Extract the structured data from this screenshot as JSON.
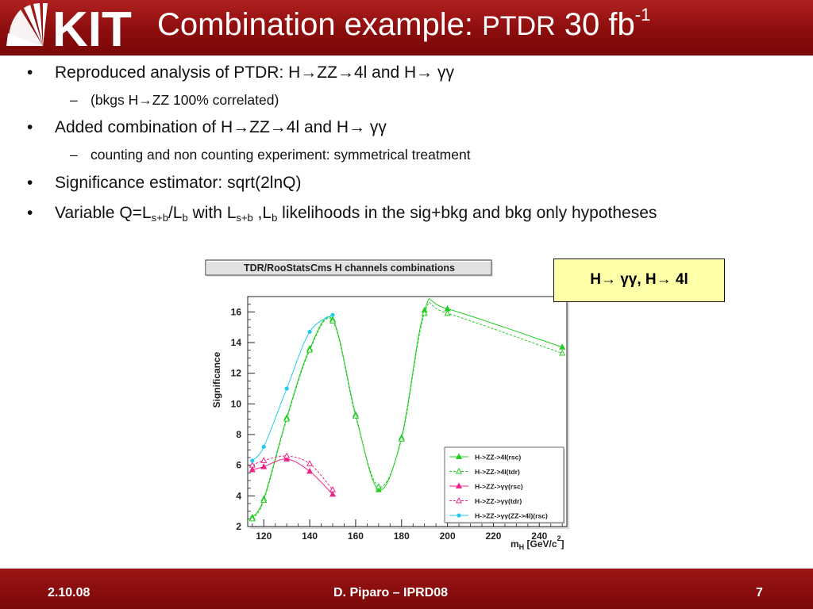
{
  "header": {
    "logo_text": "KIT",
    "title_main": "Combination example: ",
    "title_small": "PTDR",
    "title_tail": " 30 fb",
    "title_sup": "-1"
  },
  "bullets": {
    "item1": "Reproduced analysis of PTDR:  H→ZZ→4l and H→ γγ",
    "item1_sub": "(bkgs H→ZZ 100% correlated)",
    "item2": "Added combination of H→ZZ→4l and  H→ γγ",
    "item2_sub": "counting and non counting experiment: symmetrical treatment",
    "item3": "Significance estimator:  sqrt(2lnQ)",
    "item4_a": "Variable Q=L",
    "item4_sub1": "s+b",
    "item4_b": "/L",
    "item4_sub2": "b",
    "item4_c": " with L",
    "item4_sub3": "s+b",
    "item4_d": " ,L",
    "item4_sub4": "b",
    "item4_e": " likelihoods in the sig+bkg and bkg only hypotheses"
  },
  "note_box": "H→ γγ,  H→ 4l",
  "footer": {
    "date": "2.10.08",
    "author": "D. Piparo – IPRD08",
    "page": "7"
  },
  "chart_data": {
    "type": "line",
    "title": "TDR/RooStatsCms H channels combinations",
    "ylabel": "Significance",
    "xlabel": "m",
    "xlabel_sub": "H",
    "xlabel_unit": "[GeV/c",
    "xlabel_sup": "2",
    "xlabel_end": "]",
    "xlim": [
      113,
      252
    ],
    "ylim": [
      2,
      17
    ],
    "x_ticks": [
      120,
      140,
      160,
      180,
      200,
      220,
      240
    ],
    "y_ticks": [
      2,
      4,
      6,
      8,
      10,
      12,
      14,
      16
    ],
    "legend_position": "bottom-right",
    "series": [
      {
        "name": "H->ZZ->4l(rsc)",
        "color": "#22cc22",
        "style": "solid",
        "marker": "triangle-filled",
        "x": [
          115,
          120,
          130,
          140,
          150,
          160,
          170,
          180,
          190,
          200,
          250
        ],
        "y": [
          2.6,
          3.8,
          9.1,
          13.6,
          15.5,
          9.3,
          4.4,
          7.8,
          16.1,
          16.2,
          13.7
        ]
      },
      {
        "name": "H->ZZ->4l(tdr)",
        "color": "#22cc22",
        "style": "dashed",
        "marker": "triangle-open",
        "x": [
          115,
          120,
          130,
          140,
          150,
          160,
          170,
          180,
          190,
          200,
          250
        ],
        "y": [
          2.5,
          3.7,
          9.0,
          13.5,
          15.4,
          9.2,
          4.6,
          7.7,
          15.9,
          15.9,
          13.3
        ]
      },
      {
        "name": "H->ZZ->γγ(rsc)",
        "color": "#ee2288",
        "style": "solid",
        "marker": "triangle-filled",
        "x": [
          115,
          120,
          130,
          140,
          150
        ],
        "y": [
          5.7,
          5.9,
          6.4,
          5.6,
          4.1
        ]
      },
      {
        "name": "H->ZZ->γγ(tdr)",
        "color": "#ee2288",
        "style": "dashed",
        "marker": "triangle-open",
        "x": [
          115,
          120,
          130,
          140,
          150
        ],
        "y": [
          6.0,
          6.3,
          6.6,
          6.1,
          4.4
        ]
      },
      {
        "name": "H->ZZ->γγ(ZZ->4l)(rsc)",
        "color": "#22ccee",
        "style": "solid",
        "marker": "circle-filled",
        "x": [
          115,
          120,
          130,
          140,
          150
        ],
        "y": [
          6.3,
          7.2,
          11.0,
          14.7,
          15.8
        ]
      }
    ]
  }
}
